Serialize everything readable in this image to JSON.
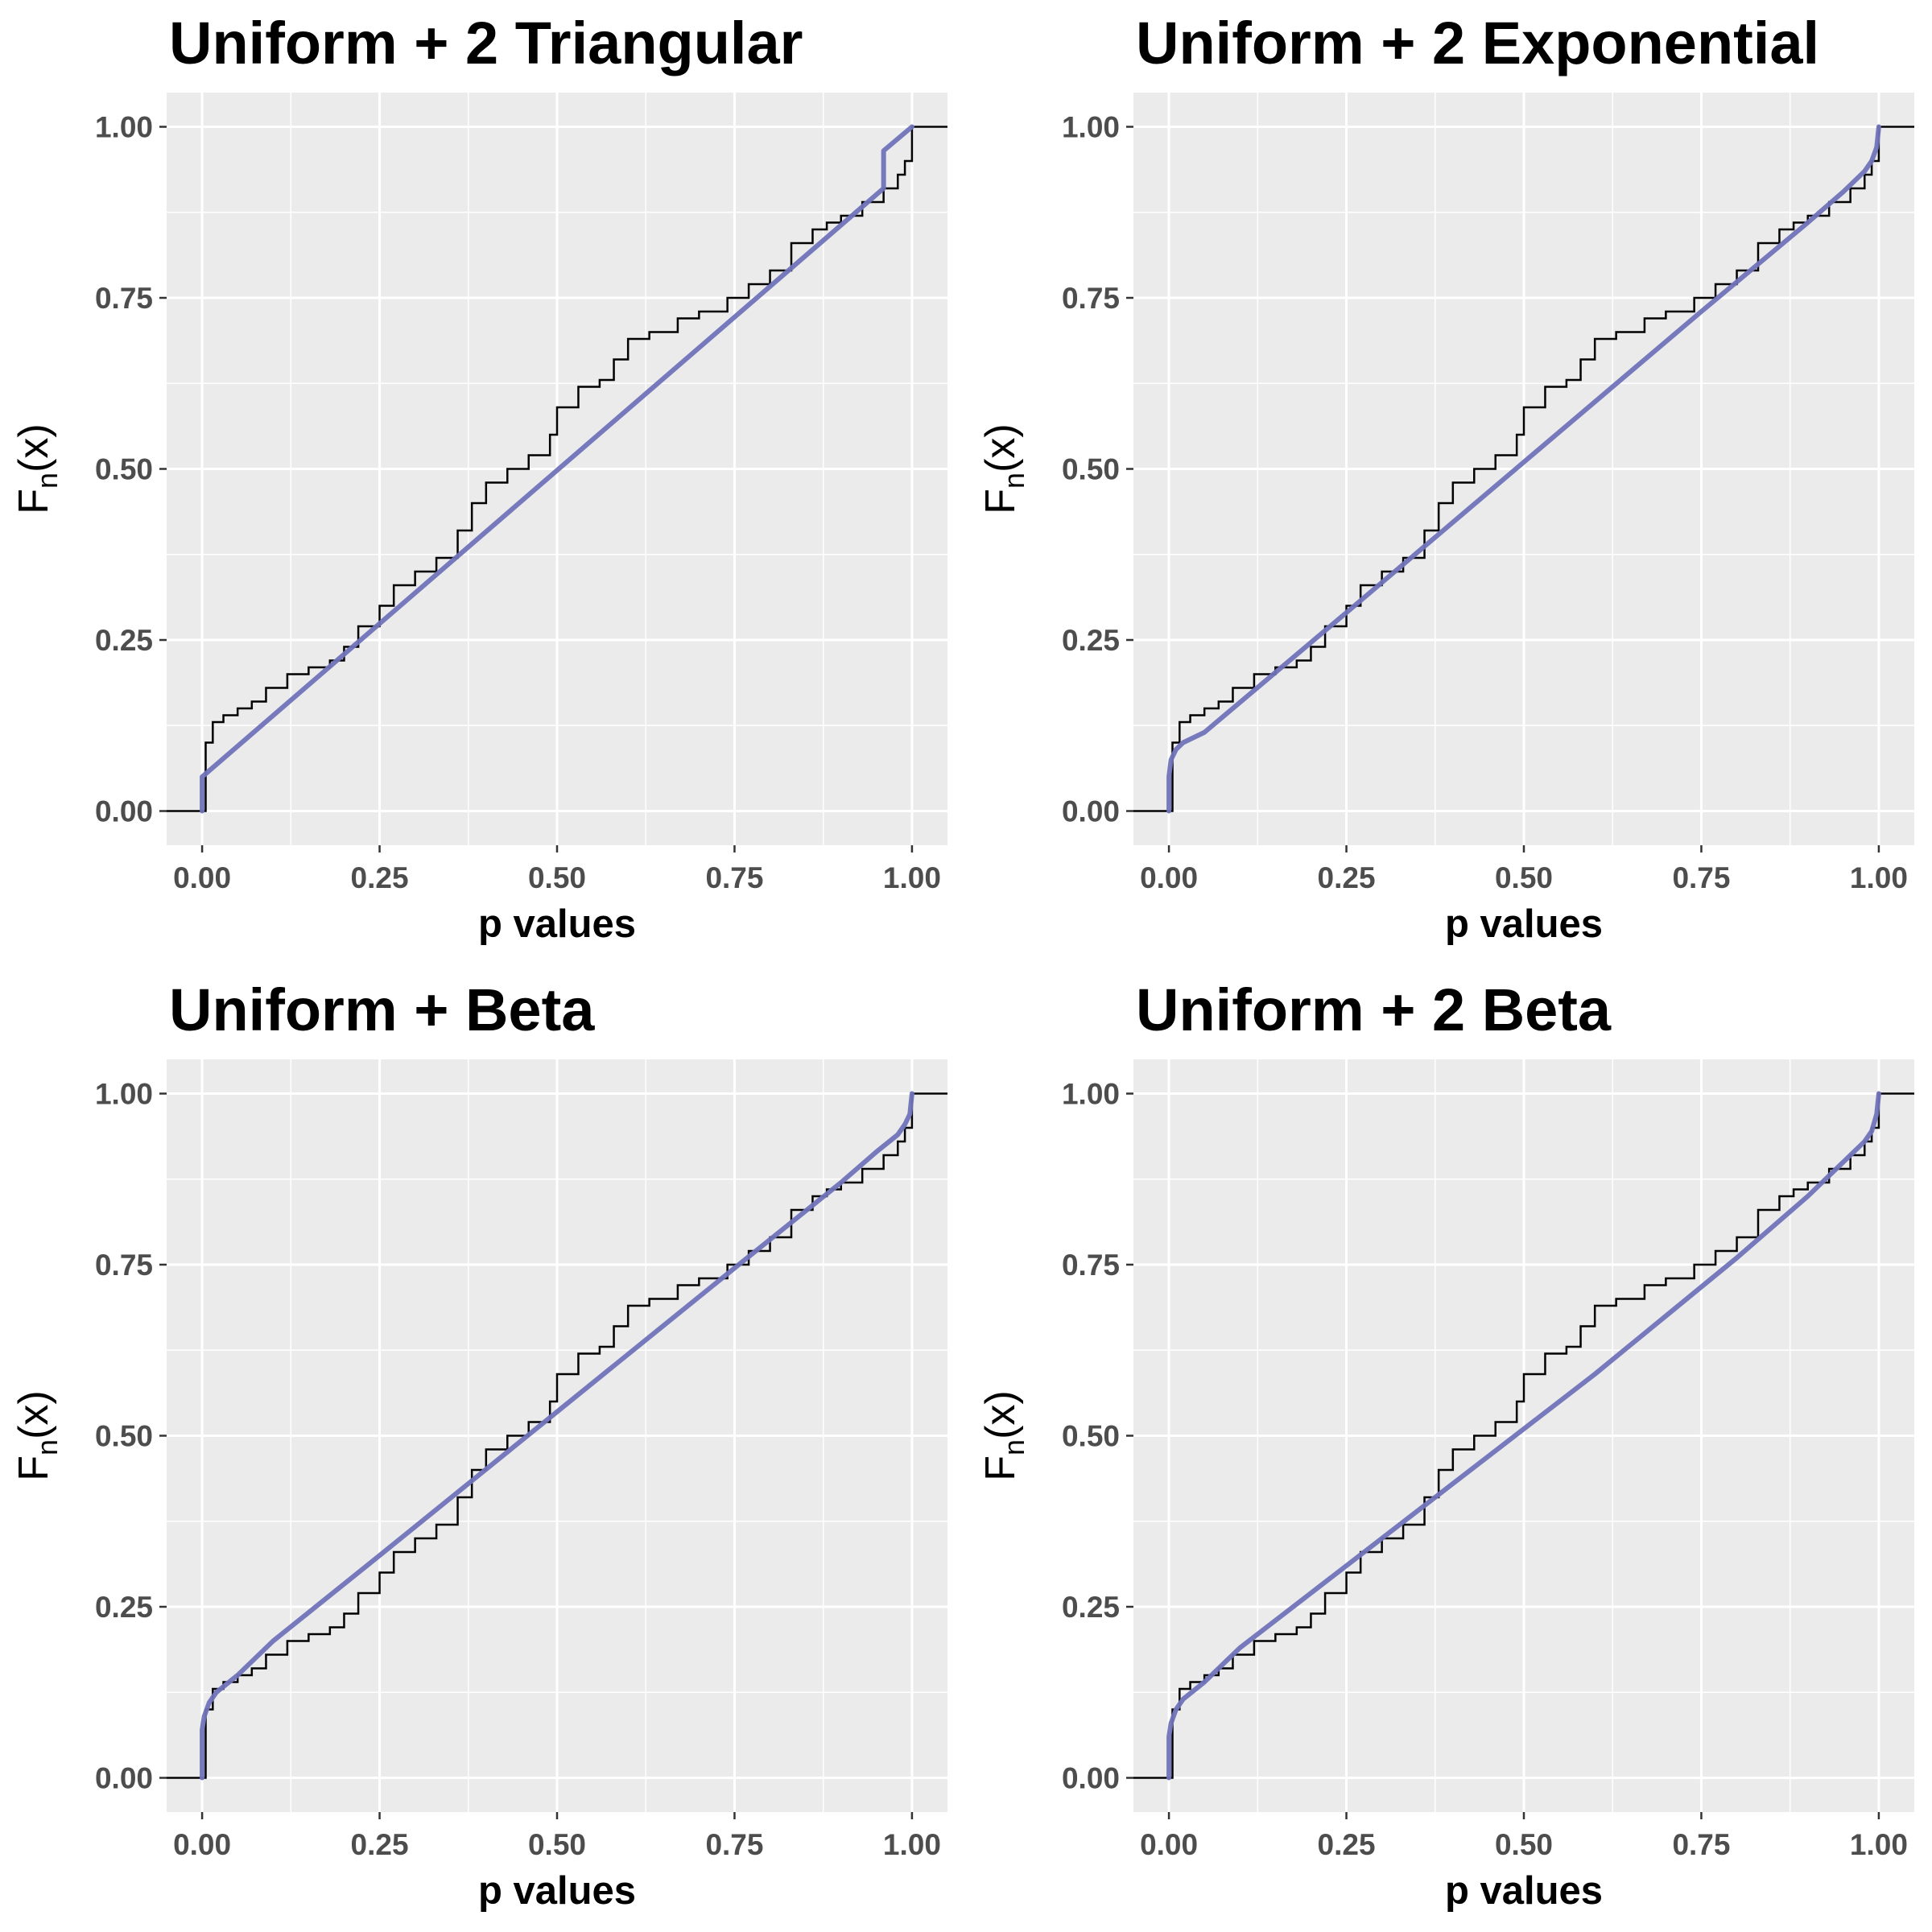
{
  "chart_data": [
    {
      "type": "line",
      "title": "Uniform + 2 Triangular",
      "xlabel": "p values",
      "ylabel": {
        "main": "F",
        "sub": "n",
        "arg": "(x)"
      },
      "xlim": [
        -0.05,
        1.05
      ],
      "ylim": [
        -0.05,
        1.05
      ],
      "xticks": [
        "0.00",
        "0.25",
        "0.50",
        "0.75",
        "1.00"
      ],
      "yticks": [
        "0.00",
        "0.25",
        "0.50",
        "0.75",
        "1.00"
      ],
      "grid": true,
      "series": [
        {
          "role": "empirical-cdf",
          "color": "#000000",
          "x": [
            -0.05,
            0.0,
            0.005,
            0.015,
            0.03,
            0.05,
            0.07,
            0.09,
            0.12,
            0.15,
            0.18,
            0.2,
            0.22,
            0.25,
            0.27,
            0.3,
            0.33,
            0.36,
            0.38,
            0.4,
            0.43,
            0.46,
            0.49,
            0.5,
            0.53,
            0.56,
            0.58,
            0.6,
            0.63,
            0.67,
            0.7,
            0.74,
            0.77,
            0.8,
            0.83,
            0.86,
            0.88,
            0.9,
            0.93,
            0.96,
            0.98,
            0.99,
            1.0,
            1.05
          ],
          "y": [
            0.0,
            0.0,
            0.1,
            0.13,
            0.14,
            0.15,
            0.16,
            0.18,
            0.2,
            0.21,
            0.22,
            0.24,
            0.27,
            0.3,
            0.33,
            0.35,
            0.37,
            0.41,
            0.45,
            0.48,
            0.5,
            0.52,
            0.55,
            0.59,
            0.62,
            0.63,
            0.66,
            0.69,
            0.7,
            0.72,
            0.73,
            0.75,
            0.77,
            0.79,
            0.83,
            0.85,
            0.86,
            0.87,
            0.89,
            0.91,
            0.93,
            0.95,
            1.0,
            1.0
          ]
        },
        {
          "role": "fitted-cdf",
          "color": "#7073b9",
          "x": [
            0.0,
            0.0,
            0.96,
            0.96,
            1.0
          ],
          "y": [
            0.0,
            0.05,
            0.91,
            0.965,
            1.0
          ]
        }
      ]
    },
    {
      "type": "line",
      "title": "Uniform + 2 Exponential",
      "xlabel": "p values",
      "ylabel": {
        "main": "F",
        "sub": "n",
        "arg": "(x)"
      },
      "xlim": [
        -0.05,
        1.05
      ],
      "ylim": [
        -0.05,
        1.05
      ],
      "xticks": [
        "0.00",
        "0.25",
        "0.50",
        "0.75",
        "1.00"
      ],
      "yticks": [
        "0.00",
        "0.25",
        "0.50",
        "0.75",
        "1.00"
      ],
      "grid": true,
      "series": [
        {
          "role": "empirical-cdf",
          "color": "#000000",
          "x": [
            -0.05,
            0.0,
            0.005,
            0.015,
            0.03,
            0.05,
            0.07,
            0.09,
            0.12,
            0.15,
            0.18,
            0.2,
            0.22,
            0.25,
            0.27,
            0.3,
            0.33,
            0.36,
            0.38,
            0.4,
            0.43,
            0.46,
            0.49,
            0.5,
            0.53,
            0.56,
            0.58,
            0.6,
            0.63,
            0.67,
            0.7,
            0.74,
            0.77,
            0.8,
            0.83,
            0.86,
            0.88,
            0.9,
            0.93,
            0.96,
            0.98,
            0.99,
            1.0,
            1.05
          ],
          "y": [
            0.0,
            0.0,
            0.1,
            0.13,
            0.14,
            0.15,
            0.16,
            0.18,
            0.2,
            0.21,
            0.22,
            0.24,
            0.27,
            0.3,
            0.33,
            0.35,
            0.37,
            0.41,
            0.45,
            0.48,
            0.5,
            0.52,
            0.55,
            0.59,
            0.62,
            0.63,
            0.66,
            0.69,
            0.7,
            0.72,
            0.73,
            0.75,
            0.77,
            0.79,
            0.83,
            0.85,
            0.86,
            0.87,
            0.89,
            0.91,
            0.93,
            0.95,
            1.0,
            1.0
          ]
        },
        {
          "role": "fitted-cdf",
          "color": "#7073b9",
          "x": [
            0.0,
            0.0,
            0.003,
            0.01,
            0.02,
            0.05,
            0.25,
            0.5,
            0.75,
            0.9,
            0.95,
            0.98,
            0.99,
            0.997,
            1.0
          ],
          "y": [
            0.0,
            0.05,
            0.075,
            0.09,
            0.1,
            0.115,
            0.29,
            0.51,
            0.73,
            0.86,
            0.905,
            0.935,
            0.95,
            0.97,
            1.0
          ]
        }
      ]
    },
    {
      "type": "line",
      "title": "Uniform + Beta",
      "xlabel": "p values",
      "ylabel": {
        "main": "F",
        "sub": "n",
        "arg": "(x)"
      },
      "xlim": [
        -0.05,
        1.05
      ],
      "ylim": [
        -0.05,
        1.05
      ],
      "xticks": [
        "0.00",
        "0.25",
        "0.50",
        "0.75",
        "1.00"
      ],
      "yticks": [
        "0.00",
        "0.25",
        "0.50",
        "0.75",
        "1.00"
      ],
      "grid": true,
      "series": [
        {
          "role": "empirical-cdf",
          "color": "#000000",
          "x": [
            -0.05,
            0.0,
            0.005,
            0.015,
            0.03,
            0.05,
            0.07,
            0.09,
            0.12,
            0.15,
            0.18,
            0.2,
            0.22,
            0.25,
            0.27,
            0.3,
            0.33,
            0.36,
            0.38,
            0.4,
            0.43,
            0.46,
            0.49,
            0.5,
            0.53,
            0.56,
            0.58,
            0.6,
            0.63,
            0.67,
            0.7,
            0.74,
            0.77,
            0.8,
            0.83,
            0.86,
            0.88,
            0.9,
            0.93,
            0.96,
            0.98,
            0.99,
            1.0,
            1.05
          ],
          "y": [
            0.0,
            0.0,
            0.1,
            0.13,
            0.14,
            0.15,
            0.16,
            0.18,
            0.2,
            0.21,
            0.22,
            0.24,
            0.27,
            0.3,
            0.33,
            0.35,
            0.37,
            0.41,
            0.45,
            0.48,
            0.5,
            0.52,
            0.55,
            0.59,
            0.62,
            0.63,
            0.66,
            0.69,
            0.7,
            0.72,
            0.73,
            0.75,
            0.77,
            0.79,
            0.83,
            0.85,
            0.86,
            0.87,
            0.89,
            0.91,
            0.93,
            0.95,
            1.0,
            1.0
          ]
        },
        {
          "role": "fitted-cdf",
          "color": "#7073b9",
          "x": [
            0.0,
            0.0,
            0.003,
            0.01,
            0.02,
            0.05,
            0.1,
            0.25,
            0.5,
            0.75,
            0.9,
            0.95,
            0.98,
            0.99,
            0.997,
            1.0
          ],
          "y": [
            0.0,
            0.07,
            0.09,
            0.11,
            0.125,
            0.15,
            0.2,
            0.325,
            0.535,
            0.745,
            0.87,
            0.915,
            0.94,
            0.955,
            0.97,
            1.0
          ]
        }
      ]
    },
    {
      "type": "line",
      "title": "Uniform + 2 Beta",
      "xlabel": "p values",
      "ylabel": {
        "main": "F",
        "sub": "n",
        "arg": "(x)"
      },
      "xlim": [
        -0.05,
        1.05
      ],
      "ylim": [
        -0.05,
        1.05
      ],
      "xticks": [
        "0.00",
        "0.25",
        "0.50",
        "0.75",
        "1.00"
      ],
      "yticks": [
        "0.00",
        "0.25",
        "0.50",
        "0.75",
        "1.00"
      ],
      "grid": true,
      "series": [
        {
          "role": "empirical-cdf",
          "color": "#000000",
          "x": [
            -0.05,
            0.0,
            0.005,
            0.015,
            0.03,
            0.05,
            0.07,
            0.09,
            0.12,
            0.15,
            0.18,
            0.2,
            0.22,
            0.25,
            0.27,
            0.3,
            0.33,
            0.36,
            0.38,
            0.4,
            0.43,
            0.46,
            0.49,
            0.5,
            0.53,
            0.56,
            0.58,
            0.6,
            0.63,
            0.67,
            0.7,
            0.74,
            0.77,
            0.8,
            0.83,
            0.86,
            0.88,
            0.9,
            0.93,
            0.96,
            0.98,
            0.99,
            1.0,
            1.05
          ],
          "y": [
            0.0,
            0.0,
            0.1,
            0.13,
            0.14,
            0.15,
            0.16,
            0.18,
            0.2,
            0.21,
            0.22,
            0.24,
            0.27,
            0.3,
            0.33,
            0.35,
            0.37,
            0.41,
            0.45,
            0.48,
            0.5,
            0.52,
            0.55,
            0.59,
            0.62,
            0.63,
            0.66,
            0.69,
            0.7,
            0.72,
            0.73,
            0.75,
            0.77,
            0.79,
            0.83,
            0.85,
            0.86,
            0.87,
            0.89,
            0.91,
            0.93,
            0.95,
            1.0,
            1.0
          ]
        },
        {
          "role": "fitted-cdf",
          "color": "#7073b9",
          "x": [
            0.0,
            0.0,
            0.003,
            0.01,
            0.02,
            0.05,
            0.1,
            0.2,
            0.3,
            0.4,
            0.5,
            0.6,
            0.7,
            0.8,
            0.9,
            0.95,
            0.98,
            0.99,
            0.997,
            1.0
          ],
          "y": [
            0.0,
            0.06,
            0.08,
            0.1,
            0.115,
            0.14,
            0.19,
            0.27,
            0.35,
            0.43,
            0.51,
            0.59,
            0.675,
            0.76,
            0.85,
            0.9,
            0.93,
            0.945,
            0.97,
            1.0
          ]
        }
      ]
    }
  ]
}
